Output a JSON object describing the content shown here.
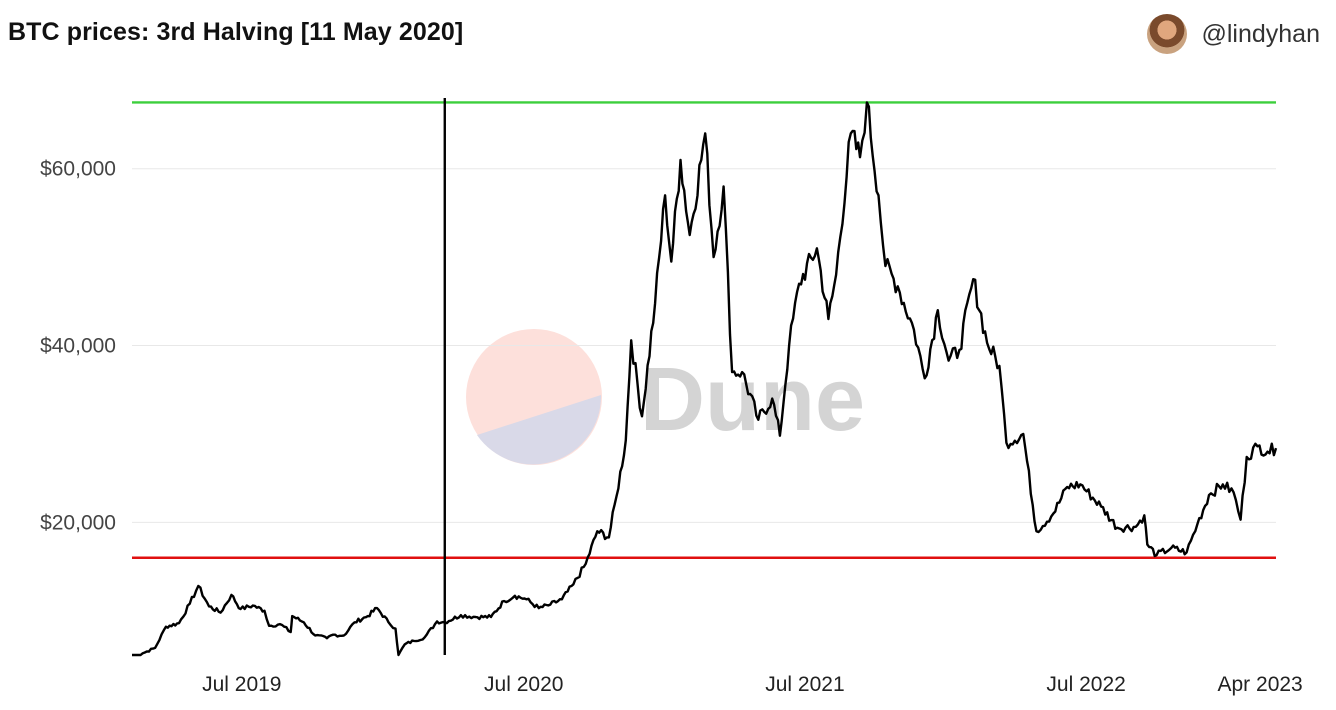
{
  "header": {
    "title": "BTC prices: 3rd Halving [11 May 2020]",
    "author_handle": "@lindyhan"
  },
  "watermark": {
    "text": "Dune",
    "colors": {
      "top": "#fde0db",
      "bottom": "#d9d9e8"
    }
  },
  "colors": {
    "line": "#000000",
    "high_line": "#3ccf3c",
    "low_line": "#e01010",
    "halving_line": "#000000",
    "grid": "#e8e8e8"
  },
  "chart_data": {
    "type": "line",
    "title": "BTC prices: 3rd Halving [11 May 2020]",
    "xlabel": "",
    "ylabel": "",
    "x_range": [
      "2019-04-01",
      "2023-04-25"
    ],
    "ylim": [
      5000,
      68000
    ],
    "y_ticks": [
      20000,
      40000,
      60000
    ],
    "y_tick_labels": [
      "$20,000",
      "$40,000",
      "$60,000"
    ],
    "x_ticks": [
      "2019-07-01",
      "2020-07-01",
      "2021-07-01",
      "2022-07-01",
      "2023-04-01"
    ],
    "x_tick_labels": [
      "Jul 2019",
      "Jul 2020",
      "Jul 2021",
      "Jul 2022",
      "Apr 2023"
    ],
    "grid": true,
    "legend": "none",
    "reference_lines": [
      {
        "orientation": "horizontal",
        "y": 67500,
        "color": "#3ccf3c"
      },
      {
        "orientation": "horizontal",
        "y": 16000,
        "color": "#e01010"
      },
      {
        "orientation": "vertical",
        "x": "2020-05-11",
        "color": "#000000"
      }
    ],
    "series": [
      {
        "x": [
          "2019-04-01",
          "2019-04-15",
          "2019-05-01",
          "2019-05-15",
          "2019-06-01",
          "2019-06-15",
          "2019-06-26",
          "2019-07-10",
          "2019-07-25",
          "2019-08-08",
          "2019-08-20",
          "2019-09-05",
          "2019-09-20",
          "2019-09-26",
          "2019-10-10",
          "2019-10-24",
          "2019-10-26",
          "2019-11-10",
          "2019-11-25",
          "2019-12-10",
          "2019-12-18",
          "2020-01-01",
          "2020-01-15",
          "2020-02-01",
          "2020-02-13",
          "2020-02-28",
          "2020-03-08",
          "2020-03-12",
          "2020-03-20",
          "2020-04-01",
          "2020-04-15",
          "2020-05-01",
          "2020-05-11",
          "2020-06-01",
          "2020-06-20",
          "2020-07-10",
          "2020-07-27",
          "2020-08-10",
          "2020-08-25",
          "2020-09-10",
          "2020-09-25",
          "2020-10-10",
          "2020-10-25",
          "2020-11-10",
          "2020-11-25",
          "2020-12-10",
          "2020-12-20",
          "2021-01-01",
          "2021-01-08",
          "2021-01-22",
          "2021-02-08",
          "2021-02-21",
          "2021-03-01",
          "2021-03-13",
          "2021-03-25",
          "2021-04-14",
          "2021-04-25",
          "2021-05-08",
          "2021-05-19",
          "2021-06-01",
          "2021-06-22",
          "2021-07-10",
          "2021-07-20",
          "2021-08-01",
          "2021-08-14",
          "2021-09-06",
          "2021-09-21",
          "2021-10-01",
          "2021-10-20",
          "2021-11-01",
          "2021-11-10",
          "2021-11-25",
          "2021-12-04",
          "2021-12-20",
          "2022-01-10",
          "2022-01-24",
          "2022-02-10",
          "2022-02-24",
          "2022-03-10",
          "2022-03-28",
          "2022-04-15",
          "2022-05-01",
          "2022-05-10",
          "2022-06-01",
          "2022-06-18",
          "2022-07-10",
          "2022-07-28",
          "2022-08-14",
          "2022-09-10",
          "2022-10-01",
          "2022-10-25",
          "2022-11-05",
          "2022-11-09",
          "2022-11-21",
          "2022-12-10",
          "2022-12-30",
          "2023-01-13",
          "2023-01-28",
          "2023-02-15",
          "2023-03-01",
          "2023-03-10",
          "2023-03-18",
          "2023-04-01",
          "2023-04-14",
          "2023-04-25"
        ],
        "y": [
          4200,
          5200,
          5800,
          8200,
          8600,
          10800,
          12800,
          10500,
          9800,
          11800,
          10200,
          10600,
          10000,
          8300,
          8500,
          7600,
          9400,
          8700,
          7200,
          6900,
          7300,
          7200,
          8700,
          9400,
          10300,
          8700,
          8000,
          5000,
          6200,
          6600,
          7000,
          8800,
          8700,
          9500,
          9300,
          9300,
          11100,
          11700,
          11300,
          10300,
          10700,
          11300,
          13000,
          15300,
          19000,
          18300,
          23000,
          29300,
          40600,
          32000,
          44800,
          57000,
          49500,
          61000,
          52500,
          64000,
          50000,
          58000,
          37000,
          37000,
          31600,
          34000,
          29800,
          40000,
          47000,
          51000,
          43000,
          48000,
          64000,
          61300,
          67500,
          57000,
          49000,
          46700,
          41800,
          36300,
          44000,
          38300,
          39500,
          47500,
          40300,
          37700,
          29000,
          30000,
          19000,
          21000,
          24000,
          24300,
          21800,
          19400,
          19500,
          20800,
          17500,
          16300,
          17100,
          16600,
          19800,
          23100,
          24300,
          23400,
          20300,
          27400,
          28600,
          28000,
          28400
        ]
      }
    ]
  }
}
